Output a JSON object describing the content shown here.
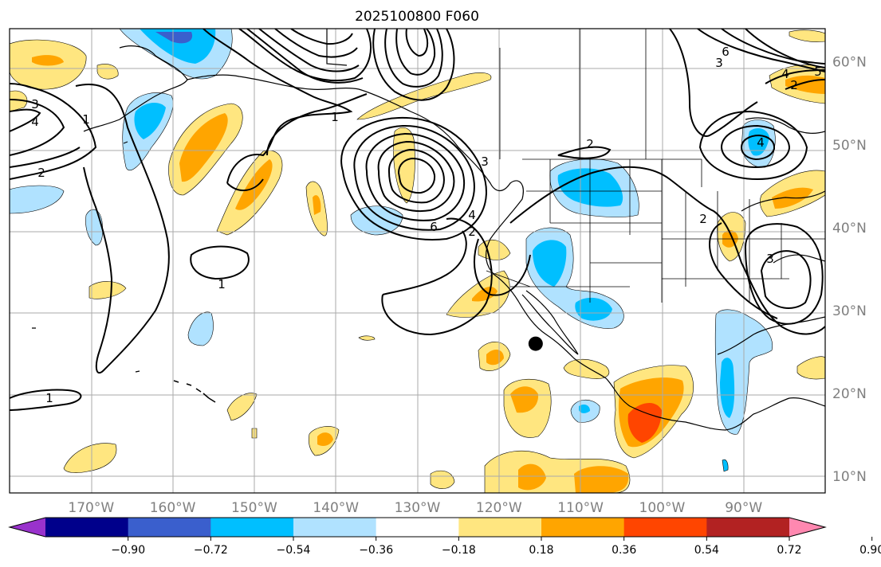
{
  "title": "2025100800 F060",
  "lon_ticks": [
    {
      "lon": -170,
      "label": "170°W"
    },
    {
      "lon": -160,
      "label": "160°W"
    },
    {
      "lon": -150,
      "label": "150°W"
    },
    {
      "lon": -140,
      "label": "140°W"
    },
    {
      "lon": -130,
      "label": "130°W"
    },
    {
      "lon": -120,
      "label": "120°W"
    },
    {
      "lon": -110,
      "label": "110°W"
    },
    {
      "lon": -100,
      "label": "100°W"
    },
    {
      "lon": -90,
      "label": "90°W"
    }
  ],
  "lat_ticks": [
    {
      "lat": 60,
      "label": "60°N"
    },
    {
      "lat": 50,
      "label": "50°N"
    },
    {
      "lat": 40,
      "label": "40°N"
    },
    {
      "lat": 30,
      "label": "30°N"
    },
    {
      "lat": 20,
      "label": "20°N"
    },
    {
      "lat": 10,
      "label": "10°N"
    }
  ],
  "map_extent": {
    "lon_min": -180,
    "lon_max": -80,
    "lat_min": 8,
    "lat_max": 64
  },
  "colorbar": {
    "colors": [
      "#9932cc",
      "#00008b",
      "#3a5fcd",
      "#00bfff",
      "#b0e2ff",
      "#ffffff",
      "#ffe680",
      "#ffa500",
      "#ff4500",
      "#b22222",
      "#ff88b0"
    ],
    "tick_labels": [
      "−0.90",
      "−0.72",
      "−0.54",
      "−0.36",
      "−0.18",
      "0.18",
      "0.36",
      "0.54",
      "0.72",
      "0.90"
    ],
    "levels": [
      -0.9,
      -0.72,
      -0.54,
      -0.36,
      -0.18,
      0.18,
      0.36,
      0.54,
      0.72,
      0.9
    ]
  },
  "contour_labels": [
    "1",
    "1",
    "1",
    "1",
    "2",
    "2",
    "2",
    "2",
    "2",
    "3",
    "3",
    "3",
    "3",
    "4",
    "4",
    "4",
    "4",
    "5",
    "6",
    "6"
  ],
  "marker": {
    "lon": -115.5,
    "lat": 26,
    "color": "#000000"
  },
  "colors": {
    "grid": "#aaaaaa",
    "contour": "#000000",
    "coast": "#000000"
  }
}
